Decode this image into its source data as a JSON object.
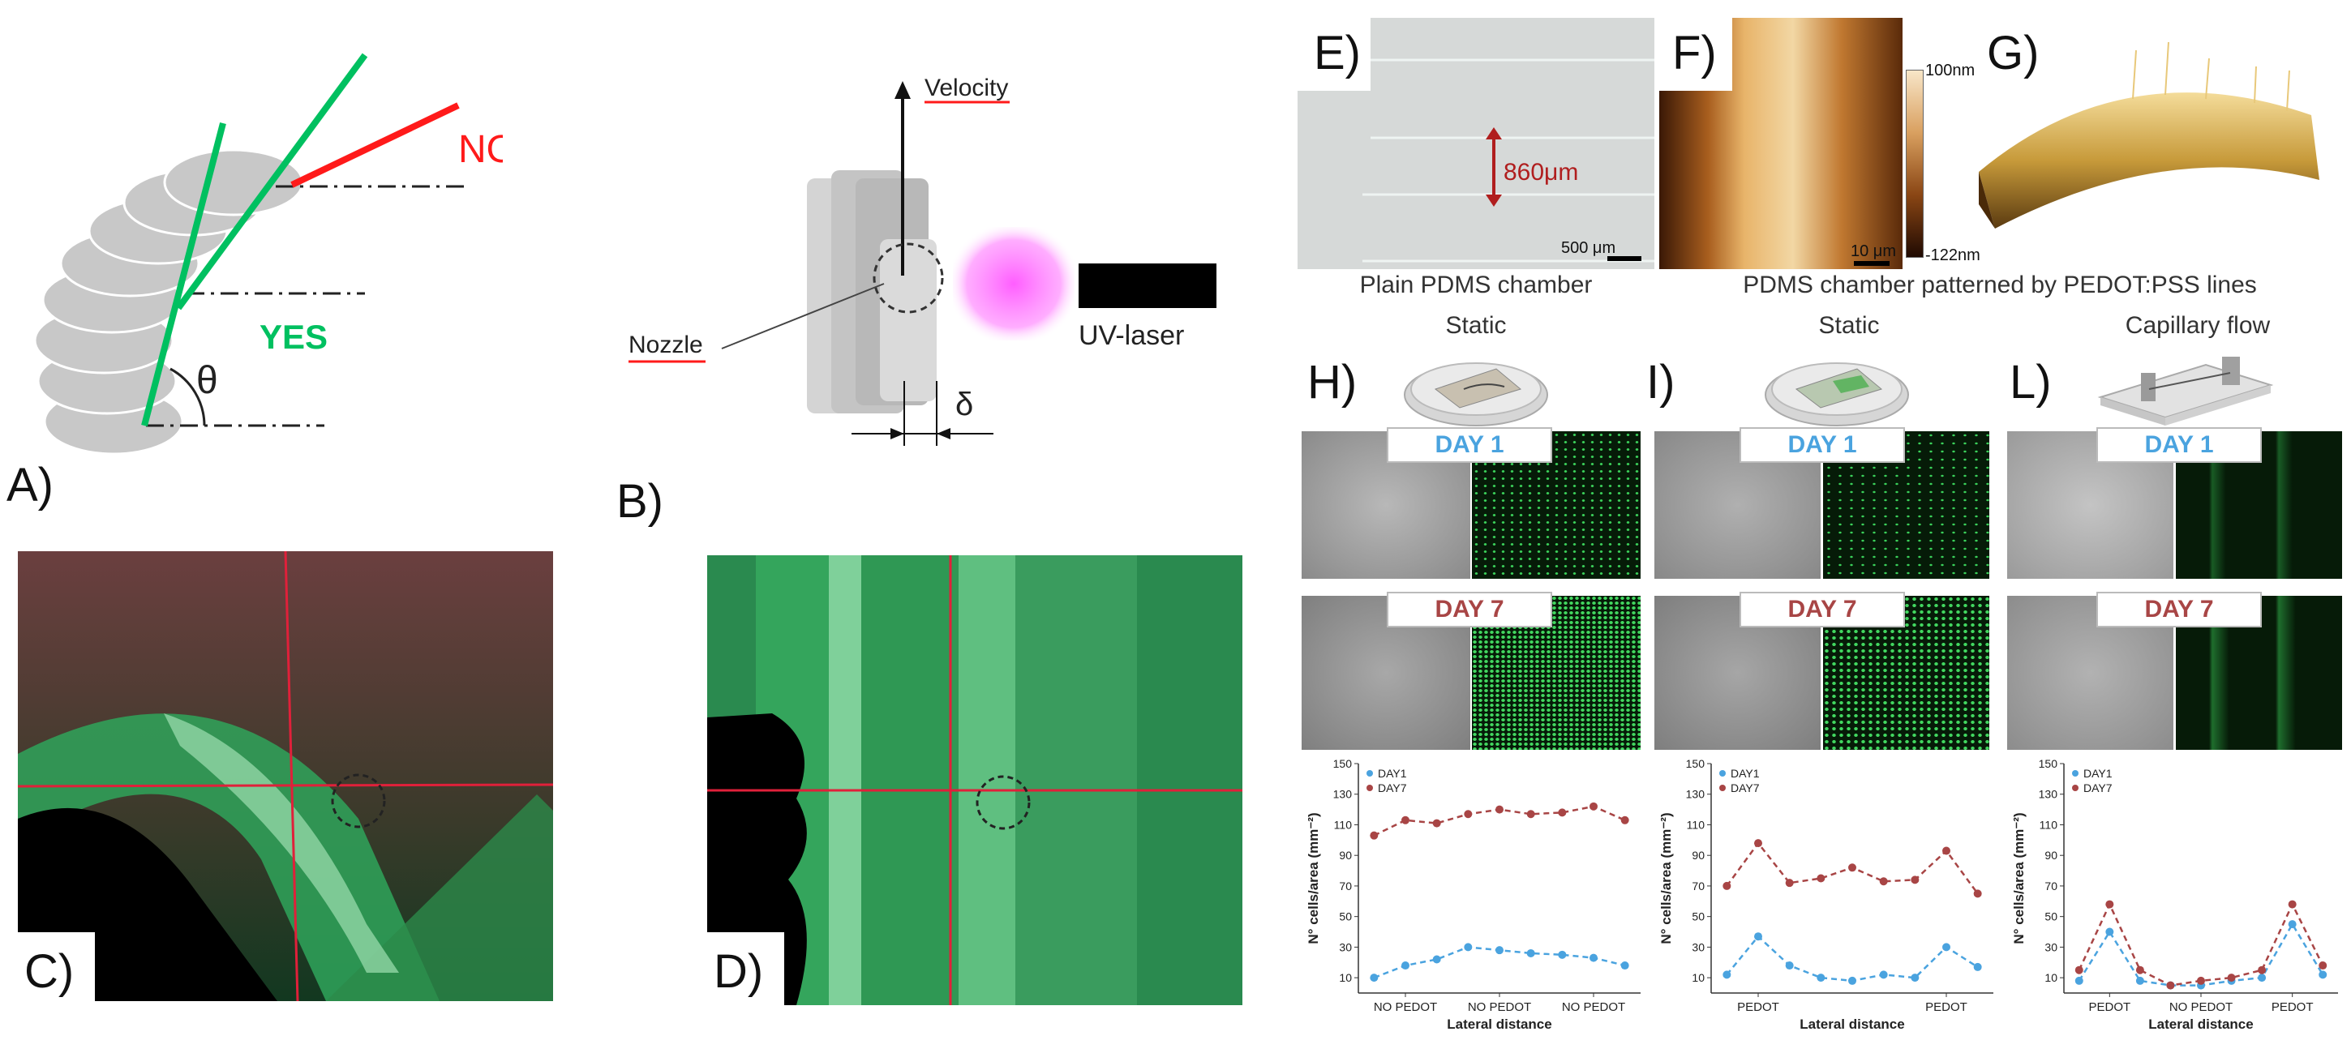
{
  "panelA": {
    "letter": "A)",
    "no_label": "NO",
    "yes_label": "YES",
    "theta": "θ"
  },
  "panelB": {
    "letter": "B)",
    "velocity": "Velocity",
    "nozzle": "Nozzle",
    "laser": "UV-laser",
    "delta": "δ"
  },
  "panelC": {
    "letter": "C)"
  },
  "panelD": {
    "letter": "D)"
  },
  "panelE": {
    "letter": "E)",
    "measure": "860μm",
    "scale": "500 μm",
    "caption": "Plain PDMS chamber"
  },
  "panelF": {
    "letter": "F)",
    "scale": "10 μm",
    "cb_top": "100nm",
    "cb_bottom": "-122nm"
  },
  "panelG": {
    "letter": "G)"
  },
  "caption_FG": "PDMS chamber patterned by PEDOT:PSS lines",
  "colors": {
    "green": "#00c060",
    "red": "#ff1a1a",
    "day1": "#4aa3df",
    "day7": "#a84545"
  },
  "panelH": {
    "letter": "H)",
    "title": "Static",
    "day1": "DAY 1",
    "day7": "DAY 7"
  },
  "panelI": {
    "letter": "I)",
    "title": "Static",
    "day1": "DAY 1",
    "day7": "DAY 7"
  },
  "panelL": {
    "letter": "L)",
    "title": "Capillary flow",
    "day1": "DAY 1",
    "day7": "DAY 7"
  },
  "chart_data": [
    {
      "type": "line",
      "panel": "H",
      "xlabel": "Lateral distance",
      "ylabel": "N° cells/area (mm⁻²)",
      "yticks": [
        10,
        30,
        50,
        70,
        90,
        110,
        130,
        150
      ],
      "ylim": [
        0,
        150
      ],
      "xticklabels": [
        "NO PEDOT",
        "NO PEDOT",
        "NO PEDOT"
      ],
      "xtick_positions": [
        2,
        5,
        8
      ],
      "legend": [
        "DAY1",
        "DAY7"
      ],
      "series": [
        {
          "name": "DAY1",
          "x": [
            1,
            2,
            3,
            4,
            5,
            6,
            7,
            8,
            9
          ],
          "values": [
            10,
            18,
            22,
            30,
            28,
            26,
            25,
            23,
            18
          ]
        },
        {
          "name": "DAY7",
          "x": [
            1,
            2,
            3,
            4,
            5,
            6,
            7,
            8,
            9
          ],
          "values": [
            103,
            113,
            111,
            117,
            120,
            117,
            118,
            122,
            113
          ]
        }
      ]
    },
    {
      "type": "line",
      "panel": "I",
      "xlabel": "Lateral distance",
      "ylabel": "N° cells/area (mm⁻²)",
      "yticks": [
        10,
        30,
        50,
        70,
        90,
        110,
        130,
        150
      ],
      "ylim": [
        0,
        150
      ],
      "xticklabels": [
        "PEDOT",
        "PEDOT"
      ],
      "xtick_positions": [
        2,
        8
      ],
      "legend": [
        "DAY1",
        "DAY7"
      ],
      "series": [
        {
          "name": "DAY1",
          "x": [
            1,
            2,
            3,
            4,
            5,
            6,
            7,
            8,
            9
          ],
          "values": [
            12,
            37,
            18,
            10,
            8,
            12,
            10,
            30,
            17
          ]
        },
        {
          "name": "DAY7",
          "x": [
            1,
            2,
            3,
            4,
            5,
            6,
            7,
            8,
            9
          ],
          "values": [
            70,
            98,
            72,
            75,
            82,
            73,
            74,
            93,
            65
          ]
        }
      ]
    },
    {
      "type": "line",
      "panel": "L",
      "xlabel": "Lateral distance",
      "ylabel": "N° cells/area (mm⁻²)",
      "yticks": [
        10,
        30,
        50,
        70,
        90,
        110,
        130,
        150
      ],
      "ylim": [
        0,
        150
      ],
      "xticklabels": [
        "PEDOT",
        "NO PEDOT",
        "PEDOT"
      ],
      "xtick_positions": [
        2,
        5,
        8
      ],
      "legend": [
        "DAY1",
        "DAY7"
      ],
      "series": [
        {
          "name": "DAY1",
          "x": [
            1,
            2,
            3,
            4,
            5,
            6,
            7,
            8,
            9
          ],
          "values": [
            8,
            40,
            8,
            5,
            5,
            8,
            10,
            45,
            12
          ]
        },
        {
          "name": "DAY7",
          "x": [
            1,
            2,
            3,
            4,
            5,
            6,
            7,
            8,
            9
          ],
          "values": [
            15,
            58,
            15,
            5,
            8,
            10,
            15,
            58,
            18
          ]
        }
      ]
    }
  ]
}
